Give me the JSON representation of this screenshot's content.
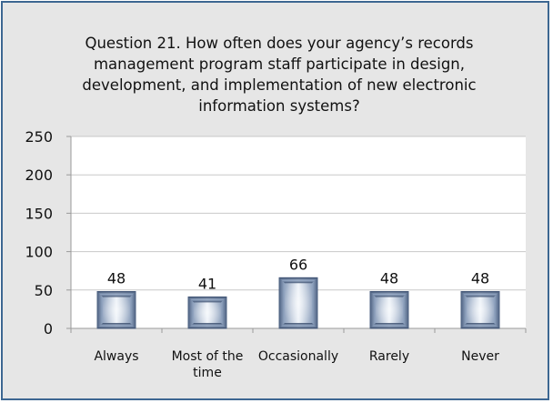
{
  "chart_data": {
    "type": "bar",
    "title": "Question 21.  How often does your agency’s records management program staff participate in design, development, and implementation of new electronic information systems?",
    "categories": [
      [
        "Always"
      ],
      [
        "Most of the",
        "time"
      ],
      [
        "Occasionally"
      ],
      [
        "Rarely"
      ],
      [
        "Never"
      ]
    ],
    "values": [
      48,
      41,
      66,
      48,
      48
    ],
    "data_labels": [
      "48",
      "41",
      "66",
      "48",
      "48"
    ],
    "ylim": [
      0,
      250
    ],
    "yticks": [
      0,
      50,
      100,
      150,
      200,
      250
    ],
    "xlabel": "",
    "ylabel": "",
    "grid": true,
    "legend": "none"
  },
  "colors": {
    "frame_border": "#3d6792",
    "frame_background": "#e6e6e6",
    "plot_background": "#ffffff",
    "gridline": "#c8c8c8",
    "bar_face": "#a7b6cb",
    "bar_edge": "#4f6383"
  }
}
